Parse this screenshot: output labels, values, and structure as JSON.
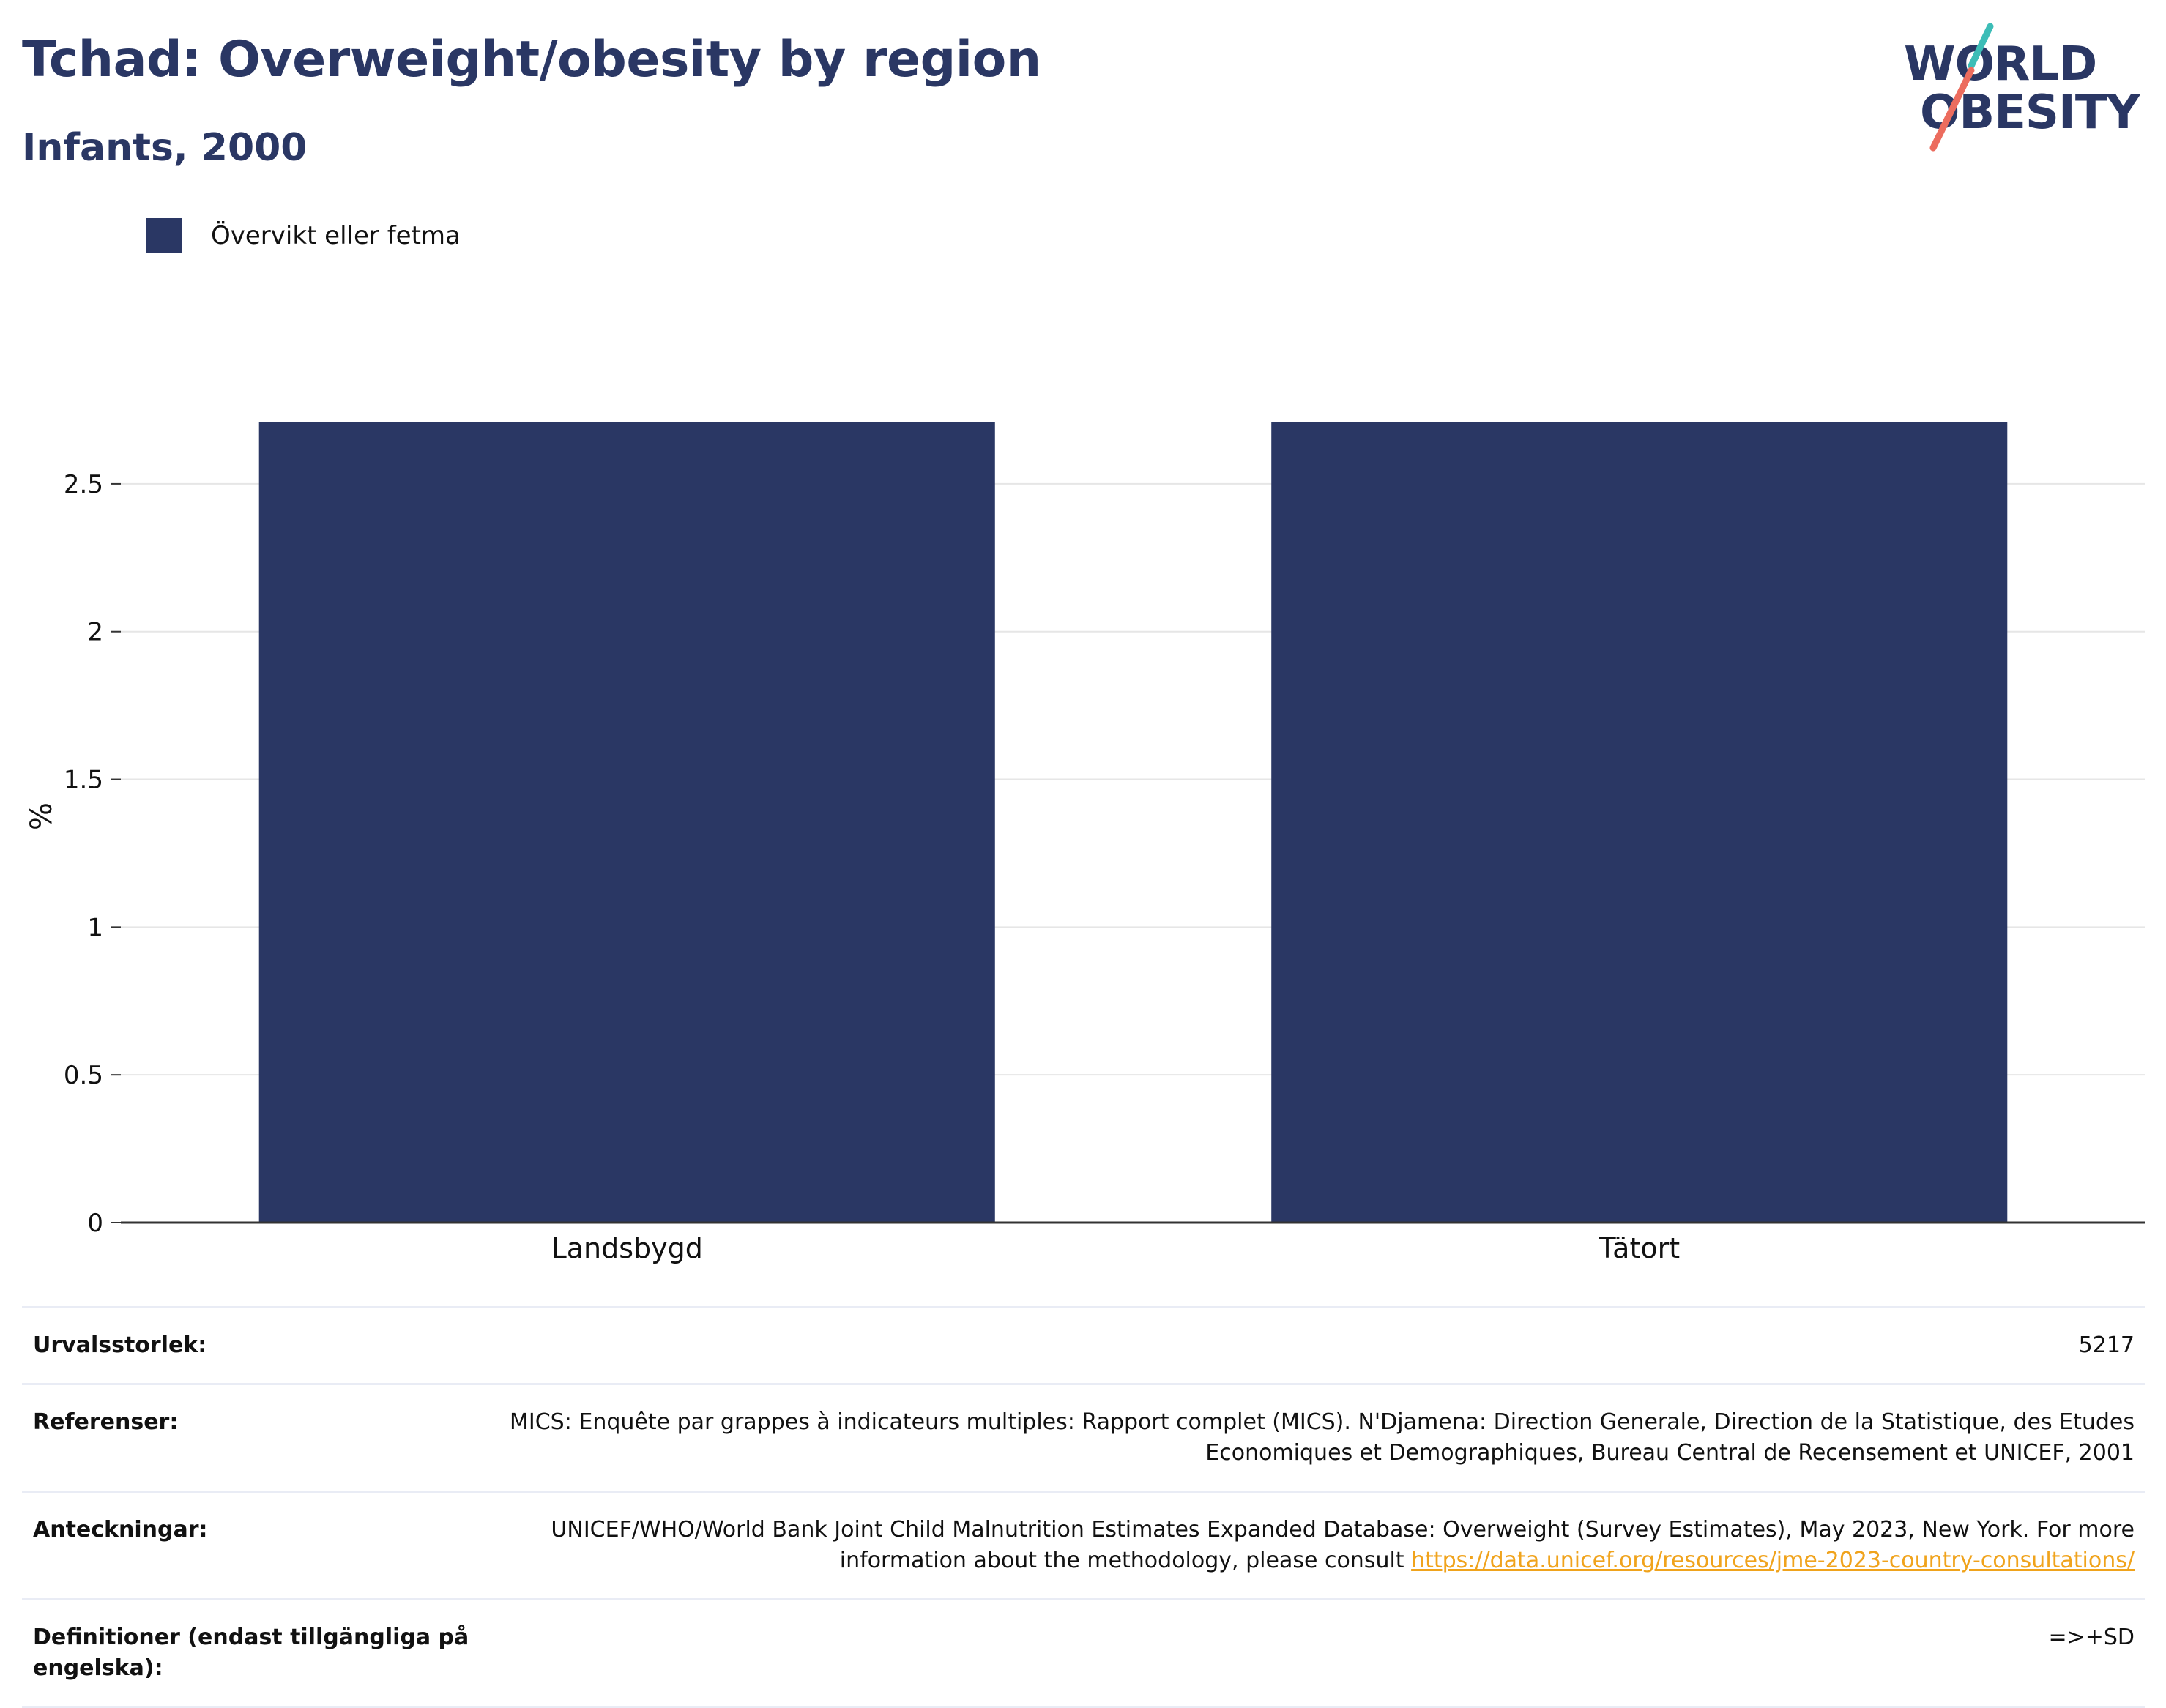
{
  "header": {
    "title": "Tchad: Overweight/obesity by region",
    "subtitle": "Infants, 2000"
  },
  "logo": {
    "line1": "WORLD",
    "line2": "OBESITY",
    "accent_teal": "#3dbdb7",
    "accent_coral": "#ec6c5e"
  },
  "colors": {
    "bar": "#2a3764",
    "title": "#2a3764",
    "grid": "#e6e6e6",
    "axis": "#333333",
    "link": "#f0a31c"
  },
  "chart_data": {
    "type": "bar",
    "title": "",
    "xlabel": "",
    "ylabel": "%",
    "categories": [
      "Landsbygd",
      "Tätort"
    ],
    "series": [
      {
        "name": "Övervikt eller fetma",
        "values": [
          2.71,
          2.71
        ]
      }
    ],
    "ylim": [
      0,
      2.75
    ],
    "yticks": [
      0,
      0.5,
      1,
      1.5,
      2,
      2.5
    ],
    "ytick_labels": [
      "0",
      "0.5",
      "1",
      "1.5",
      "2",
      "2.5"
    ],
    "grid": true,
    "legend_position": "top-left"
  },
  "info": {
    "sample_label": "Urvalsstorlek:",
    "sample_value": "5217",
    "refs_label": "Referenser:",
    "refs_value": "MICS: Enquête par grappes à indicateurs multiples: Rapport complet (MICS). N'Djamena: Direction Generale, Direction de la Statistique, des Etudes Economiques et Demographiques, Bureau Central de Recensement et UNICEF, 2001",
    "notes_label": "Anteckningar:",
    "notes_text": "UNICEF/WHO/World Bank Joint Child Malnutrition Estimates Expanded Database: Overweight (Survey Estimates), May 2023, New York. For more information about the methodology, please consult ",
    "notes_link": "https://data.unicef.org/resources/jme-2023-country-consultations/",
    "defs_label": "Definitioner (endast tillgängliga på engelska):",
    "defs_value": "=>+SD"
  }
}
